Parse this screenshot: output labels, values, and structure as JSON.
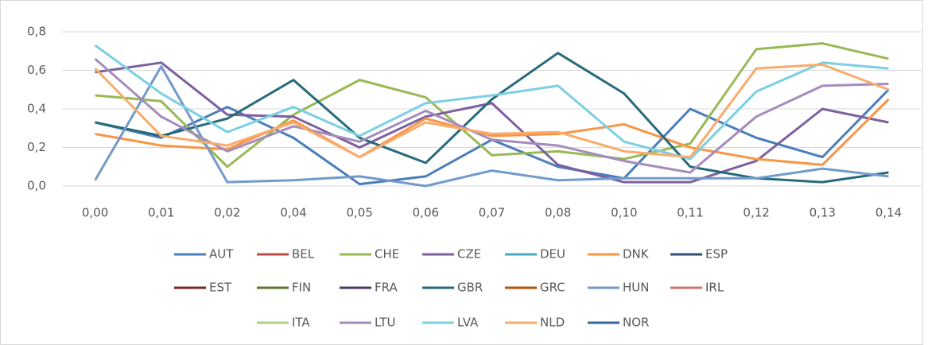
{
  "chart_data": {
    "type": "line",
    "categories": [
      "0,00",
      "0,01",
      "0,02",
      "0,04",
      "0,05",
      "0,06",
      "0,07",
      "0,08",
      "0,10",
      "0,11",
      "0,12",
      "0,13",
      "0,14"
    ],
    "ylim": [
      0,
      0.8
    ],
    "yticks": [
      {
        "value": 0,
        "label": "0,0"
      },
      {
        "value": 0.2,
        "label": "0,2"
      },
      {
        "value": 0.4,
        "label": "0,4"
      },
      {
        "value": 0.6,
        "label": "0,6"
      },
      {
        "value": 0.8,
        "label": "0,8"
      }
    ],
    "grid": true,
    "legend": "bottom",
    "series": [
      {
        "name": "AUT",
        "color": "#4a7ebb",
        "values": [
          0.33,
          0.25,
          0.41,
          0.25,
          0.01,
          0.05,
          0.24,
          0.1,
          0.04,
          0.4,
          0.25,
          0.15,
          0.5
        ]
      },
      {
        "name": "BEL",
        "color": "#be4b48",
        "values": [
          null,
          null,
          null,
          null,
          null,
          null,
          null,
          null,
          null,
          null,
          null,
          null,
          null
        ]
      },
      {
        "name": "CHE",
        "color": "#98b954",
        "values": [
          0.47,
          0.44,
          0.1,
          0.37,
          0.55,
          0.46,
          0.16,
          0.18,
          0.14,
          0.22,
          0.71,
          0.74,
          0.66
        ]
      },
      {
        "name": "CZE",
        "color": "#7d60a0",
        "values": [
          0.59,
          0.64,
          0.37,
          0.36,
          0.2,
          0.36,
          0.43,
          0.11,
          0.02,
          0.02,
          0.13,
          0.4,
          0.33
        ]
      },
      {
        "name": "DEU",
        "color": "#46aac5",
        "values": [
          null,
          null,
          null,
          null,
          null,
          null,
          null,
          null,
          null,
          null,
          null,
          null,
          null
        ]
      },
      {
        "name": "DNK",
        "color": "#f79646",
        "values": [
          0.27,
          0.21,
          0.19,
          0.34,
          0.15,
          0.35,
          0.26,
          0.27,
          0.32,
          0.2,
          0.14,
          0.11,
          0.45
        ]
      },
      {
        "name": "ESP",
        "color": "#2c4d75",
        "values": [
          null,
          null,
          null,
          null,
          null,
          null,
          null,
          null,
          null,
          null,
          null,
          null,
          null
        ]
      },
      {
        "name": "EST",
        "color": "#772c2a",
        "values": [
          null,
          null,
          null,
          null,
          null,
          null,
          null,
          null,
          null,
          null,
          null,
          null,
          null
        ]
      },
      {
        "name": "FIN",
        "color": "#5f7530",
        "values": [
          null,
          null,
          null,
          null,
          null,
          null,
          null,
          null,
          null,
          null,
          null,
          null,
          null
        ]
      },
      {
        "name": "FRA",
        "color": "#4d3b62",
        "values": [
          null,
          null,
          null,
          null,
          null,
          null,
          null,
          null,
          null,
          null,
          null,
          null,
          null
        ]
      },
      {
        "name": "GBR",
        "color": "#276a7c",
        "values": [
          0.33,
          0.26,
          0.35,
          0.55,
          0.25,
          0.12,
          0.45,
          0.69,
          0.48,
          0.1,
          0.04,
          0.02,
          0.07
        ]
      },
      {
        "name": "GRC",
        "color": "#b65708",
        "values": [
          null,
          null,
          null,
          null,
          null,
          null,
          null,
          null,
          null,
          null,
          null,
          null,
          null
        ]
      },
      {
        "name": "HUN",
        "color": "#729aca",
        "values": [
          0.03,
          0.62,
          0.02,
          0.03,
          0.05,
          0.0,
          0.08,
          0.03,
          0.04,
          0.04,
          0.04,
          0.09,
          0.05
        ]
      },
      {
        "name": "IRL",
        "color": "#cd7371",
        "values": [
          null,
          null,
          null,
          null,
          null,
          null,
          null,
          null,
          null,
          null,
          null,
          null,
          null
        ]
      },
      {
        "name": "ITA",
        "color": "#a9d18e",
        "values": [
          null,
          null,
          null,
          null,
          null,
          null,
          null,
          null,
          null,
          null,
          null,
          null,
          null
        ]
      },
      {
        "name": "LTU",
        "color": "#a48cbd",
        "values": [
          0.66,
          0.36,
          0.18,
          0.31,
          0.23,
          0.39,
          0.24,
          0.21,
          0.13,
          0.07,
          0.36,
          0.52,
          0.53
        ]
      },
      {
        "name": "LVA",
        "color": "#7ccfe3",
        "values": [
          0.73,
          0.48,
          0.28,
          0.41,
          0.26,
          0.43,
          0.47,
          0.52,
          0.23,
          0.14,
          0.49,
          0.64,
          0.61
        ]
      },
      {
        "name": "NLD",
        "color": "#f9ab6b",
        "values": [
          0.61,
          0.26,
          0.21,
          0.33,
          0.15,
          0.33,
          0.27,
          0.28,
          0.18,
          0.15,
          0.61,
          0.63,
          0.5
        ]
      },
      {
        "name": "NOR",
        "color": "#3a6696",
        "values": [
          null,
          null,
          null,
          null,
          null,
          null,
          null,
          null,
          null,
          null,
          null,
          null,
          null
        ]
      }
    ]
  }
}
